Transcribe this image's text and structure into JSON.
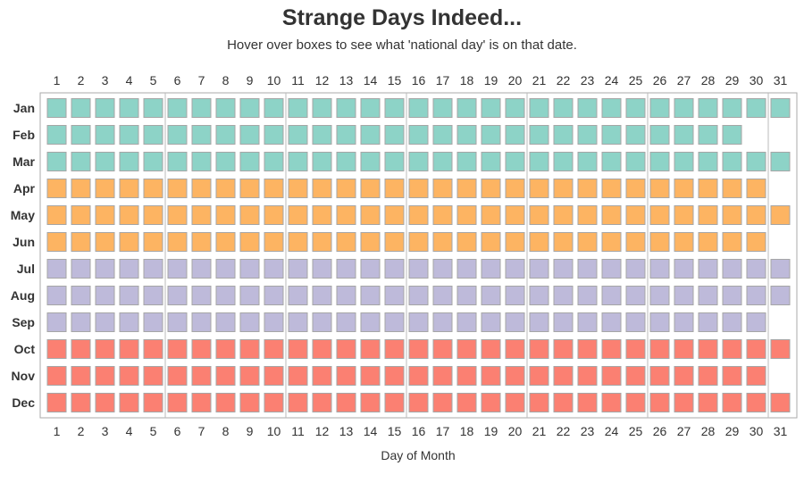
{
  "chart_data": {
    "type": "heatmap",
    "title": "Strange Days Indeed...",
    "subtitle": "Hover over boxes to see what 'national day' is on that date.",
    "xlabel": "Day of Month",
    "ylabel": "",
    "days": [
      1,
      2,
      3,
      4,
      5,
      6,
      7,
      8,
      9,
      10,
      11,
      12,
      13,
      14,
      15,
      16,
      17,
      18,
      19,
      20,
      21,
      22,
      23,
      24,
      25,
      26,
      27,
      28,
      29,
      30,
      31
    ],
    "months": [
      "Jan",
      "Feb",
      "Mar",
      "Apr",
      "May",
      "Jun",
      "Jul",
      "Aug",
      "Sep",
      "Oct",
      "Nov",
      "Dec"
    ],
    "days_in_month": [
      31,
      29,
      31,
      30,
      31,
      30,
      31,
      31,
      30,
      31,
      30,
      31
    ],
    "month_colors": [
      "#8dd3c7",
      "#8dd3c7",
      "#8dd3c7",
      "#fdb462",
      "#fdb462",
      "#fdb462",
      "#bebada",
      "#bebada",
      "#bebada",
      "#fb8072",
      "#fb8072",
      "#fb8072"
    ],
    "day_groups": [
      [
        1,
        5
      ],
      [
        6,
        10
      ],
      [
        11,
        15
      ],
      [
        16,
        20
      ],
      [
        21,
        25
      ],
      [
        26,
        30
      ],
      [
        31,
        31
      ]
    ],
    "x_ticks_top": true,
    "x_ticks_bottom": true,
    "grid": false
  }
}
